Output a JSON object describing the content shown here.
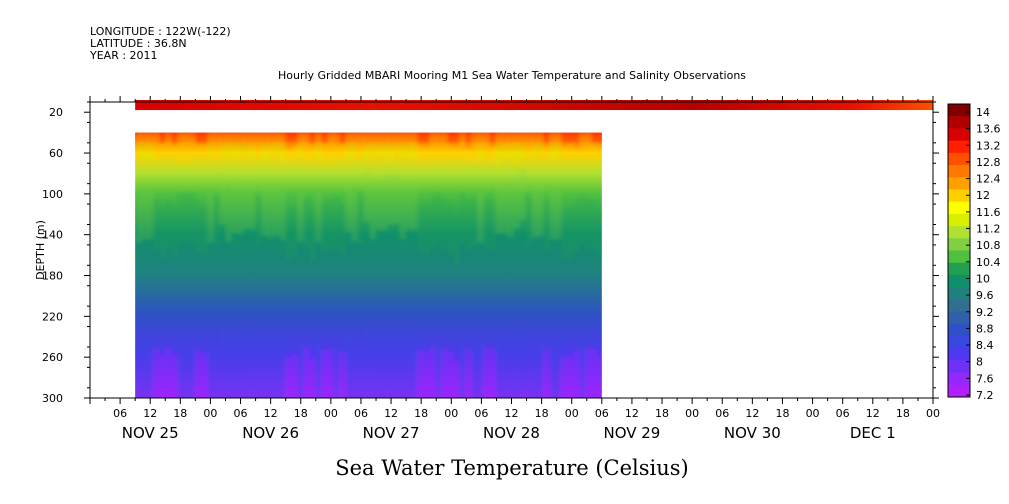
{
  "header": {
    "longitude": "LONGITUDE : 122W(-122)",
    "latitude": "LATITUDE : 36.8N",
    "year": "YEAR : 2011",
    "title": "Hourly Gridded MBARI Mooring M1 Sea Water Temperature and Salinity Observations"
  },
  "chart_data": {
    "type": "heatmap",
    "title": "Hourly Gridded MBARI Mooring M1 Sea Water Temperature and Salinity Observations",
    "xlabel": "",
    "ylabel": "DEPTH (m)",
    "bottom_label": "Sea Water Temperature (Celsius)",
    "x_range_hours": [
      0,
      168
    ],
    "x_range_label": "NOV 25 00:00 to DEC 2 00:00, 2011",
    "x_hour_ticks": [
      "06",
      "12",
      "18",
      "00",
      "06",
      "12",
      "18",
      "00",
      "06",
      "12",
      "18",
      "00",
      "06",
      "12",
      "18",
      "00",
      "06",
      "12",
      "18",
      "00",
      "06",
      "12",
      "18",
      "00",
      "06",
      "12",
      "18",
      "00"
    ],
    "x_day_labels": [
      "NOV 25",
      "NOV 26",
      "NOV 27",
      "NOV 28",
      "NOV 29",
      "NOV 30",
      "DEC  1"
    ],
    "ylim": [
      300,
      10
    ],
    "y_ticks": [
      20,
      60,
      100,
      140,
      180,
      220,
      260,
      300
    ],
    "surface_band": {
      "depth": [
        10,
        12
      ],
      "start_hour": 9,
      "end_hour": 168,
      "value_range": [
        13.0,
        14.0
      ]
    },
    "profile_block": {
      "depth_range": [
        40,
        300
      ],
      "start_hour": 9,
      "end_hour": 102,
      "depth_profile": [
        {
          "depth": 40,
          "value": 13.0
        },
        {
          "depth": 60,
          "value": 11.8
        },
        {
          "depth": 80,
          "value": 11.0
        },
        {
          "depth": 100,
          "value": 10.6
        },
        {
          "depth": 140,
          "value": 10.0
        },
        {
          "depth": 180,
          "value": 9.5
        },
        {
          "depth": 220,
          "value": 8.8
        },
        {
          "depth": 260,
          "value": 8.2
        },
        {
          "depth": 300,
          "value": 7.6
        }
      ]
    },
    "colorbar": {
      "labels": [
        "14",
        "13.6",
        "13.2",
        "12.8",
        "12.4",
        "12",
        "11.6",
        "11.2",
        "10.8",
        "10.4",
        "10",
        "9.6",
        "9.2",
        "8.8",
        "8.4",
        "8",
        "7.6",
        "7.2"
      ],
      "colors": [
        "#800000",
        "#b00000",
        "#d80000",
        "#ff1e00",
        "#ff5000",
        "#ff7800",
        "#ffa000",
        "#ffd000",
        "#ffff00",
        "#d8f000",
        "#b0e030",
        "#80d040",
        "#50c040",
        "#20a050",
        "#10906a",
        "#208080",
        "#306f90",
        "#3060a8",
        "#3050c8",
        "#3848e0",
        "#5038f0",
        "#7030f8",
        "#9428fc",
        "#b020ff"
      ]
    }
  }
}
